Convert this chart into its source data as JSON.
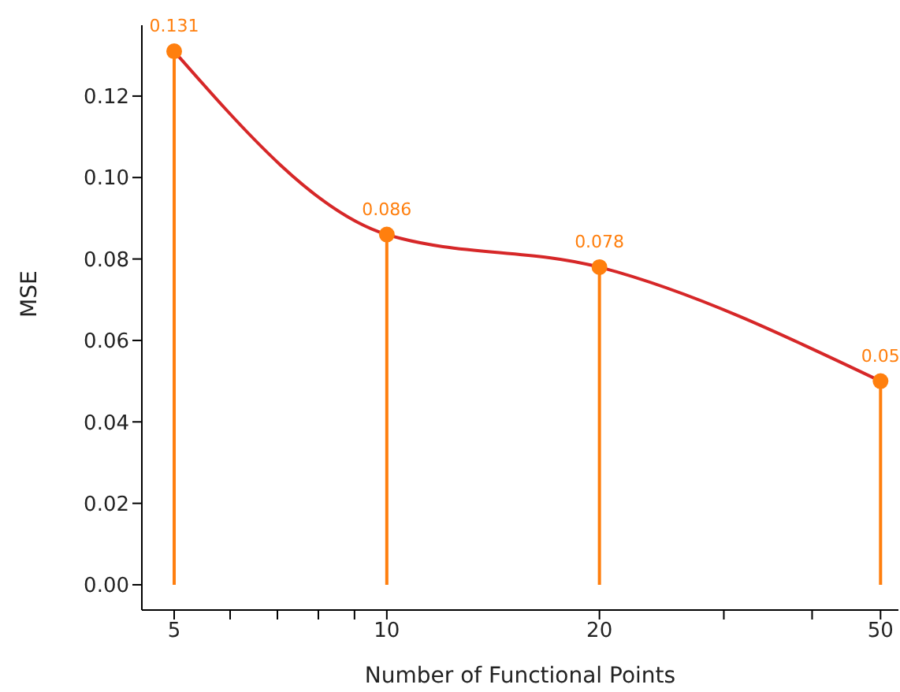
{
  "chart_data": {
    "type": "lollipop",
    "xlabel": "Number of Functional Points",
    "ylabel": "MSE",
    "x": [
      5,
      10,
      20,
      50
    ],
    "series": [
      {
        "color": "#ff7f0e",
        "values": [
          0.131,
          0.086,
          0.078,
          0.05
        ],
        "value_labels": [
          "0.131",
          "0.086",
          "0.078",
          "0.05"
        ],
        "marker": "circle"
      },
      {
        "type": "line",
        "color": "#d62728",
        "values": [
          0.131,
          0.086,
          0.078,
          0.05
        ],
        "marker": "none",
        "line_style": "solid"
      }
    ],
    "log": "x",
    "grid": false,
    "legend": false,
    "xlim": [
      4.5,
      53
    ],
    "xticks": [
      5,
      {
        "value": 6,
        "label": null
      },
      {
        "value": 7,
        "label": null
      },
      {
        "value": 8,
        "label": null
      },
      {
        "value": 9,
        "label": null
      },
      10,
      20,
      {
        "value": 30,
        "label": null
      },
      {
        "value": 40,
        "label": null
      },
      50
    ],
    "ylim": [
      -0.0062,
      0.1374
    ],
    "yticks": [
      {
        "value": 0,
        "label": "0.00"
      },
      {
        "value": 0.02,
        "label": "0.02"
      },
      {
        "value": 0.04,
        "label": "0.04"
      },
      {
        "value": 0.06,
        "label": "0.06"
      },
      {
        "value": 0.08,
        "label": "0.08"
      },
      {
        "value": 0.1,
        "label": "0.10"
      },
      {
        "value": 0.12,
        "label": "0.12"
      }
    ]
  }
}
